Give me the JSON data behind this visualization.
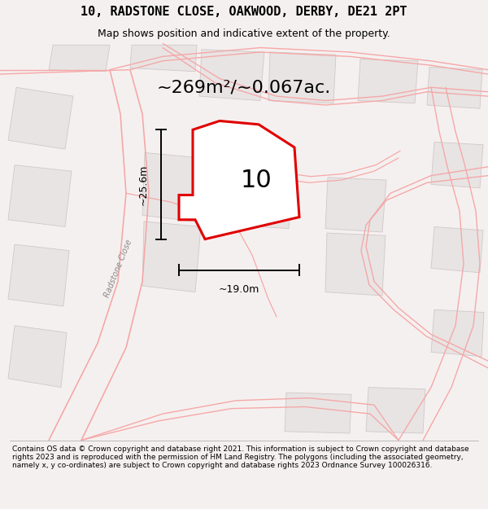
{
  "title_line1": "10, RADSTONE CLOSE, OAKWOOD, DERBY, DE21 2PT",
  "title_line2": "Map shows position and indicative extent of the property.",
  "area_text": "~269m²/~0.067ac.",
  "width_label": "~19.0m",
  "height_label": "~25.6m",
  "number_label": "10",
  "street_label": "Radstone Close",
  "footer_text": "Contains OS data © Crown copyright and database right 2021. This information is subject to Crown copyright and database rights 2023 and is reproduced with the permission of HM Land Registry. The polygons (including the associated geometry, namely x, y co-ordinates) are subject to Crown copyright and database rights 2023 Ordnance Survey 100026316.",
  "bg_color": "#f5f0f0",
  "map_bg": "#f9f6f6",
  "highlight_color": "#e00000",
  "road_color": "#f5a8a8",
  "road_lw": 1.0,
  "building_color": "#e8e4e4",
  "building_edge": "#d0c8c8",
  "dim_line_color": "#000000",
  "title_fs": 11,
  "subtitle_fs": 9,
  "area_fs": 16,
  "label_fs": 9,
  "number_fs": 22,
  "street_fs": 7,
  "footer_fs": 6.5
}
